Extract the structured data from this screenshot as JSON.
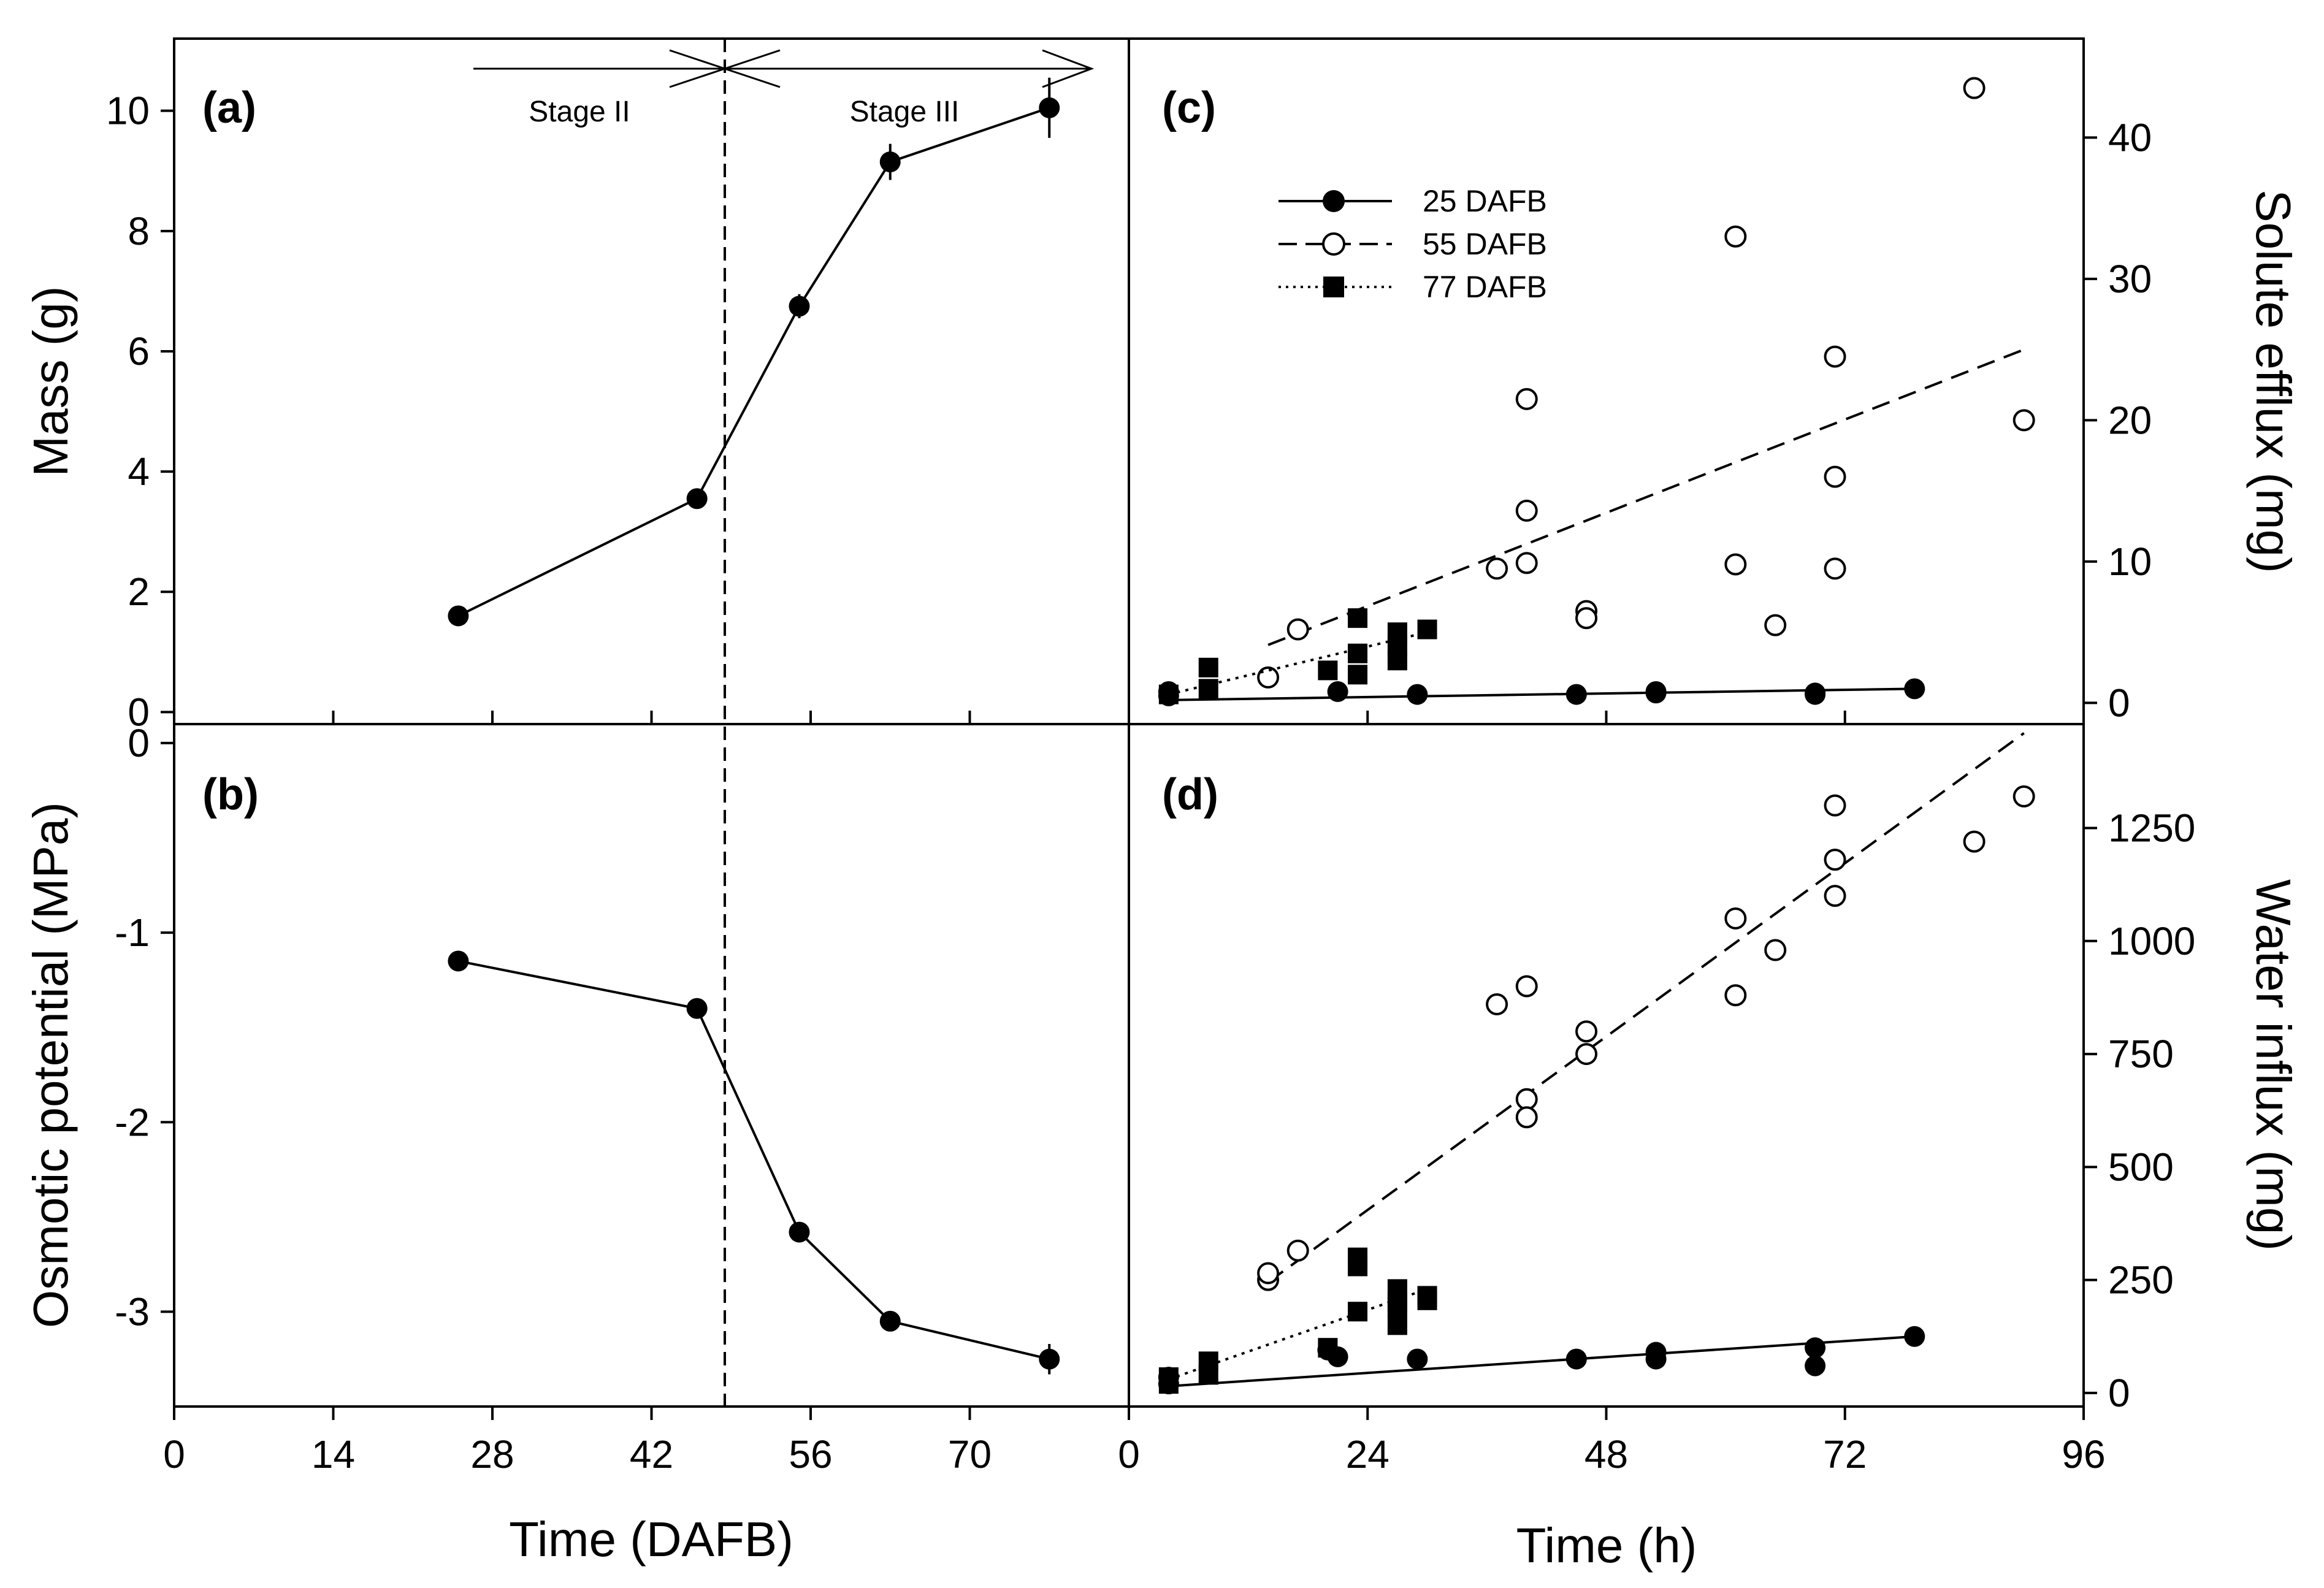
{
  "chart_data": [
    {
      "panel": "a",
      "type": "line",
      "panel_label": "(a)",
      "xlabel": "Time (DAFB)",
      "ylabel": "Mass (g)",
      "xlim": [
        0,
        84
      ],
      "ylim": [
        -0.2,
        11.2
      ],
      "xticks": [
        0,
        14,
        28,
        42,
        56,
        70
      ],
      "yticks": [
        0,
        2,
        4,
        6,
        8,
        10
      ],
      "annotations": {
        "stage2": "Stage II",
        "stage3": "Stage III",
        "stage_boundary_dafb": 46
      },
      "series": [
        {
          "name": "Mass",
          "x": [
            25,
            46,
            55,
            63,
            77
          ],
          "y": [
            1.6,
            3.55,
            6.75,
            9.15,
            10.05
          ],
          "err": [
            0.05,
            0.1,
            0.2,
            0.3,
            0.5
          ]
        }
      ]
    },
    {
      "panel": "b",
      "type": "line",
      "panel_label": "(b)",
      "xlabel": "Time (DAFB)",
      "ylabel": "Osmotic potential (MPa)",
      "xlim": [
        0,
        84
      ],
      "ylim": [
        -3.5,
        0.1
      ],
      "xticks": [
        0,
        14,
        28,
        42,
        56,
        70
      ],
      "yticks": [
        0,
        -1,
        -2,
        -3
      ],
      "series": [
        {
          "name": "Osmotic potential",
          "x": [
            25,
            46,
            55,
            63,
            77
          ],
          "y": [
            -1.15,
            -1.4,
            -2.58,
            -3.05,
            -3.25
          ],
          "err": [
            0.02,
            0.03,
            0.05,
            0.03,
            0.08
          ]
        }
      ]
    },
    {
      "panel": "c",
      "type": "scatter",
      "panel_label": "(c)",
      "xlabel": "Time (h)",
      "ylabel": "Solute efflux (mg)",
      "xlim": [
        0,
        96
      ],
      "ylim": [
        -1.5,
        47
      ],
      "xticks": [
        0,
        24,
        48,
        72,
        96
      ],
      "yticks": [
        0,
        10,
        20,
        30,
        40
      ],
      "series": [
        {
          "name": "25 DAFB",
          "x": [
            4,
            4,
            21,
            29,
            45,
            53,
            53,
            69,
            69,
            79
          ],
          "y": [
            0.5,
            0.8,
            0.8,
            0.6,
            0.6,
            0.8,
            0.7,
            0.7,
            0.6,
            1.0
          ],
          "fit": {
            "x": [
              4,
              79
            ],
            "y": [
              0.2,
              1.0
            ]
          }
        },
        {
          "name": "55 DAFB",
          "x": [
            14,
            17,
            37,
            40,
            40,
            40,
            46,
            46,
            61,
            61,
            65,
            71,
            71,
            71,
            85,
            90
          ],
          "y": [
            1.8,
            5.2,
            9.5,
            21.5,
            13.6,
            9.9,
            6.5,
            6.0,
            33.0,
            9.8,
            5.5,
            24.5,
            16.0,
            9.5,
            43.5,
            20.0
          ],
          "fit": {
            "x": [
              14,
              90
            ],
            "y": [
              4.1,
              25.0
            ]
          }
        },
        {
          "name": "77 DAFB",
          "x": [
            4,
            8,
            8,
            20,
            23,
            23,
            23,
            27,
            27,
            27,
            30
          ],
          "y": [
            0.6,
            2.5,
            1.0,
            2.3,
            6.0,
            3.5,
            2.0,
            5.0,
            4.0,
            3.0,
            5.2
          ],
          "fit": {
            "x": [
              4,
              30
            ],
            "y": [
              0.6,
              5.0
            ]
          }
        }
      ]
    },
    {
      "panel": "d",
      "type": "scatter",
      "panel_label": "(d)",
      "xlabel": "Time (h)",
      "ylabel": "Water influx (mg)",
      "xlim": [
        0,
        96
      ],
      "ylim": [
        -30,
        1480
      ],
      "xticks": [
        0,
        24,
        48,
        72,
        96
      ],
      "yticks": [
        0,
        250,
        500,
        750,
        1000,
        1250
      ],
      "series": [
        {
          "name": "25 DAFB",
          "x": [
            4,
            4,
            20,
            21,
            29,
            45,
            53,
            53,
            69,
            69,
            79
          ],
          "y": [
            20,
            35,
            95,
            80,
            75,
            75,
            90,
            75,
            60,
            100,
            125
          ],
          "fit": {
            "x": [
              4,
              79
            ],
            "y": [
              15,
              125
            ]
          }
        },
        {
          "name": "55 DAFB",
          "x": [
            14,
            14,
            17,
            37,
            40,
            40,
            40,
            46,
            46,
            61,
            61,
            65,
            71,
            71,
            71,
            85,
            90
          ],
          "y": [
            250,
            265,
            315,
            860,
            900,
            650,
            610,
            800,
            750,
            880,
            1050,
            980,
            1300,
            1180,
            1100,
            1220,
            1320
          ],
          "fit": {
            "x": [
              14,
              90
            ],
            "y": [
              245,
              1460
            ]
          }
        },
        {
          "name": "77 DAFB",
          "x": [
            4,
            4,
            8,
            8,
            20,
            23,
            23,
            23,
            27,
            27,
            27,
            27,
            30,
            30
          ],
          "y": [
            20,
            35,
            40,
            70,
            100,
            280,
            300,
            180,
            230,
            200,
            190,
            150,
            205,
            215
          ],
          "fit": {
            "x": [
              4,
              30
            ],
            "y": [
              30,
              230
            ]
          }
        }
      ]
    }
  ],
  "legend": {
    "entries": [
      "25 DAFB",
      "55 DAFB",
      "77 DAFB"
    ]
  }
}
